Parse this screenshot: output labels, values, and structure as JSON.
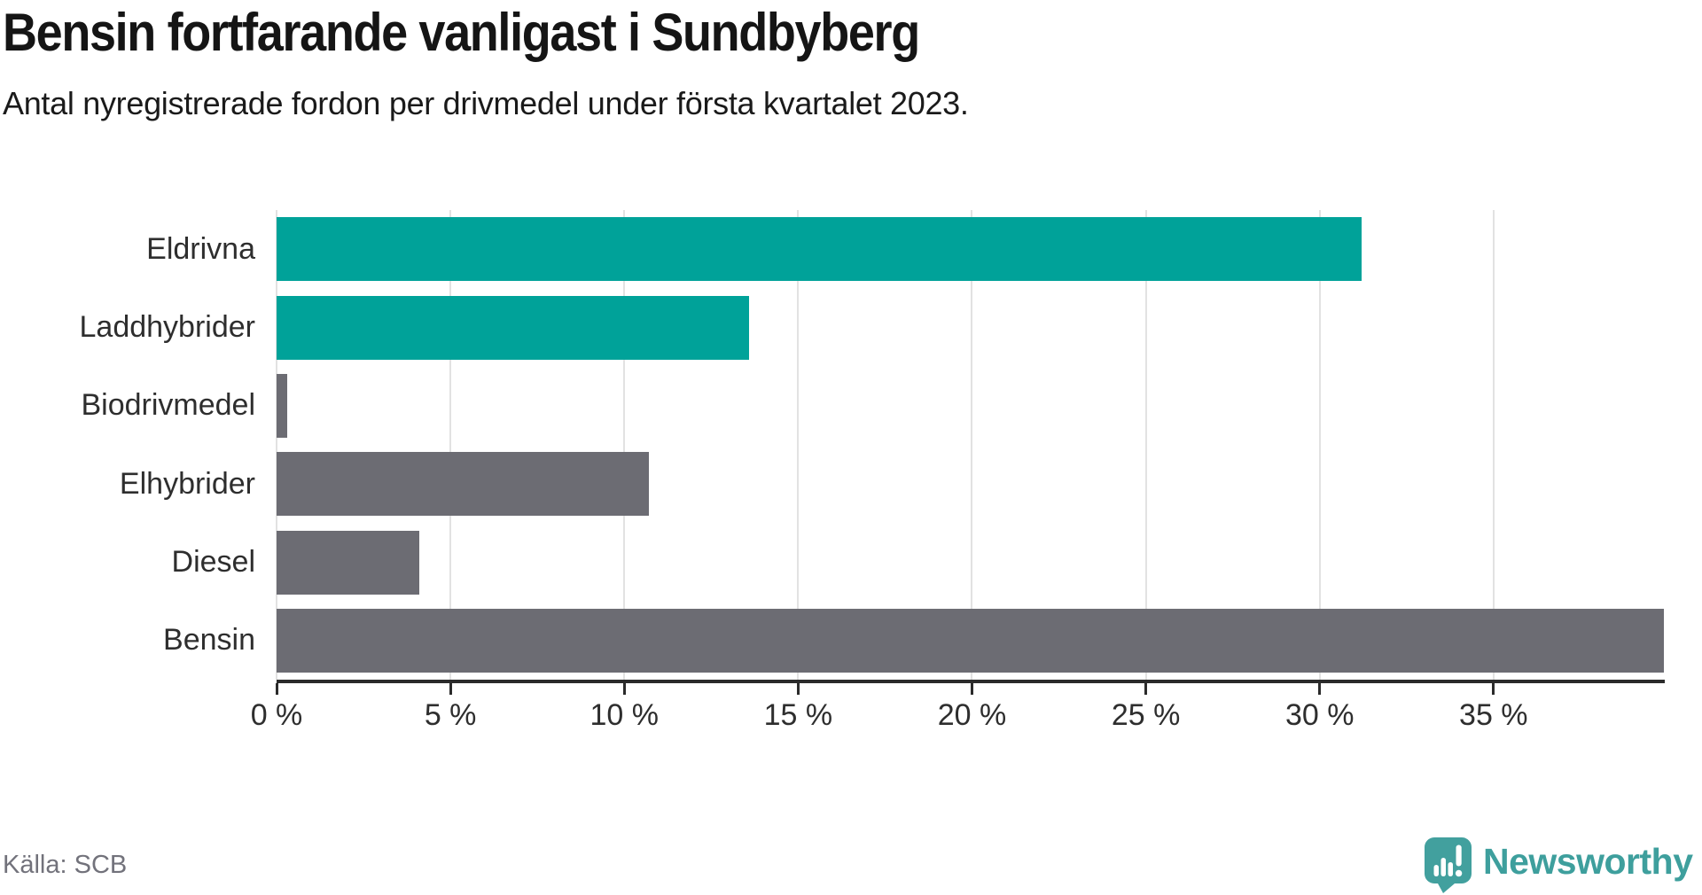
{
  "header": {
    "title": "Bensin fortfarande vanligast i Sundbyberg",
    "subtitle": "Antal nyregistrerade fordon per drivmedel under första kvartalet 2023."
  },
  "chart_data": {
    "type": "bar",
    "orientation": "horizontal",
    "title": "Bensin fortfarande vanligast i Sundbyberg",
    "subtitle": "Antal nyregistrerade fordon per drivmedel under första kvartalet 2023.",
    "categories": [
      "Eldrivna",
      "Laddhybrider",
      "Biodrivmedel",
      "Elhybrider",
      "Diesel",
      "Bensin"
    ],
    "values": [
      31.2,
      13.6,
      0.3,
      10.7,
      4.1,
      39.9
    ],
    "unit": "%",
    "bar_colors": [
      "#00a299",
      "#00a299",
      "#6c6c73",
      "#6c6c73",
      "#6c6c73",
      "#6c6c73"
    ],
    "highlight_color": "#00a299",
    "default_color": "#6c6c73",
    "xlim": [
      0,
      39.9
    ],
    "x_ticks": [
      0,
      5,
      10,
      15,
      20,
      25,
      30,
      35
    ],
    "x_tick_labels": [
      "0 %",
      "5 %",
      "10 %",
      "15 %",
      "20 %",
      "25 %",
      "30 %",
      "35 %"
    ],
    "grid": "vertical",
    "legend": "none",
    "value_labels": "none"
  },
  "footer": {
    "source": "Källa: SCB",
    "brand": "Newsworthy"
  },
  "colors": {
    "bar_teal": "#00a299",
    "bar_gray": "#6c6c73",
    "gridline": "#e2e2e2",
    "axis": "#2b2b2b",
    "tick_label": "#2e2e2e",
    "title_text": "#151515",
    "source_text": "#72727b",
    "logo_teal": "#42a09e"
  }
}
